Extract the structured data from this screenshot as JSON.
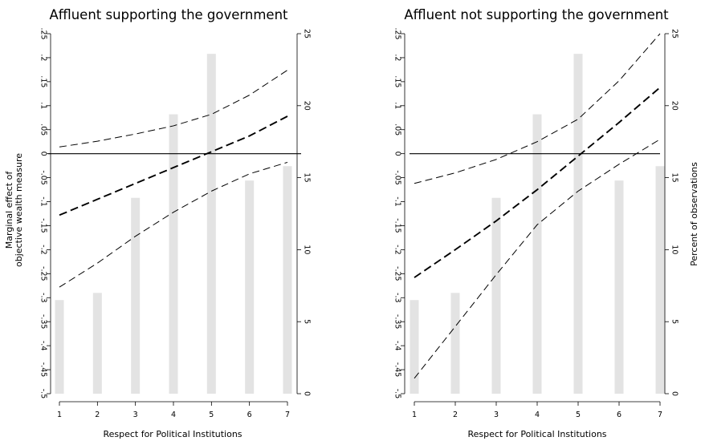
{
  "chart_data": [
    {
      "type": "line",
      "title": "Affluent supporting the government",
      "xlabel": "Respect for Political Institutions",
      "ylabel": [
        "Marginal effect of",
        "objective wealth measure"
      ],
      "y2label": "",
      "x": [
        1,
        2,
        3,
        4,
        5,
        6,
        7
      ],
      "xlim": [
        1,
        7
      ],
      "ylim": [
        -0.5,
        0.25
      ],
      "y_ticks": [
        -0.5,
        -0.45,
        -0.4,
        -0.35,
        -0.3,
        -0.25,
        -0.2,
        -0.15,
        -0.1,
        -0.05,
        0,
        0.05,
        0.1,
        0.15,
        0.2,
        0.25
      ],
      "y_tick_labels": [
        "-.5",
        "-.45",
        "-.4",
        "-.35",
        "-.3",
        "-.25",
        "-.2",
        "-.15",
        "-.1",
        "-.05",
        "0",
        ".05",
        ".1",
        ".15",
        ".2",
        ".25"
      ],
      "y2lim": [
        0,
        25
      ],
      "y2_ticks": [
        0,
        5,
        10,
        15,
        20,
        25
      ],
      "y2_tick_labels": [
        "0",
        "5",
        "10",
        "15",
        "20",
        "25"
      ],
      "histogram": {
        "name": "",
        "axis": "right",
        "values": [
          6.5,
          7.0,
          13.6,
          19.4,
          23.6,
          14.8,
          15.8
        ]
      },
      "series": [
        {
          "name": "",
          "role": "estimate",
          "values": [
            -0.128,
            -0.095,
            -0.062,
            -0.029,
            0.004,
            0.037,
            0.078
          ]
        },
        {
          "name": "",
          "role": "upper_ci",
          "values": [
            0.014,
            0.026,
            0.041,
            0.058,
            0.082,
            0.122,
            0.174
          ]
        },
        {
          "name": "",
          "role": "lower_ci",
          "values": [
            -0.278,
            -0.228,
            -0.172,
            -0.122,
            -0.078,
            -0.042,
            -0.018
          ]
        }
      ],
      "reference_line": 0,
      "grid": false,
      "legend": "none"
    },
    {
      "type": "line",
      "title": "Affluent not supporting the government",
      "xlabel": "Respect for Political Institutions",
      "ylabel": [],
      "y2label": "Percent of observations",
      "x": [
        1,
        2,
        3,
        4,
        5,
        6,
        7
      ],
      "xlim": [
        1,
        7
      ],
      "ylim": [
        -0.5,
        0.25
      ],
      "y_ticks": [
        -0.5,
        -0.45,
        -0.4,
        -0.35,
        -0.3,
        -0.25,
        -0.2,
        -0.15,
        -0.1,
        -0.05,
        0,
        0.05,
        0.1,
        0.15,
        0.2,
        0.25
      ],
      "y_tick_labels": [
        "-.5",
        "-.45",
        "-.4",
        "-.35",
        "-.3",
        "-.25",
        "-.2",
        "-.15",
        "-.1",
        "-.05",
        "0",
        ".05",
        ".1",
        ".15",
        ".2",
        ".25"
      ],
      "y2lim": [
        0,
        25
      ],
      "y2_ticks": [
        0,
        5,
        10,
        15,
        20,
        25
      ],
      "y2_tick_labels": [
        "0",
        "5",
        "10",
        "15",
        "20",
        "25"
      ],
      "histogram": {
        "name": "",
        "axis": "right",
        "values": [
          6.5,
          7.0,
          13.6,
          19.4,
          23.6,
          14.8,
          15.8
        ]
      },
      "series": [
        {
          "name": "",
          "role": "estimate",
          "values": [
            -0.258,
            -0.2,
            -0.14,
            -0.075,
            -0.005,
            0.065,
            0.138
          ]
        },
        {
          "name": "",
          "role": "upper_ci",
          "values": [
            -0.062,
            -0.04,
            -0.012,
            0.025,
            0.072,
            0.152,
            0.25
          ]
        },
        {
          "name": "",
          "role": "lower_ci",
          "values": [
            -0.468,
            -0.36,
            -0.252,
            -0.148,
            -0.078,
            -0.022,
            0.03
          ]
        }
      ],
      "reference_line": 0,
      "grid": false,
      "legend": "none"
    }
  ]
}
